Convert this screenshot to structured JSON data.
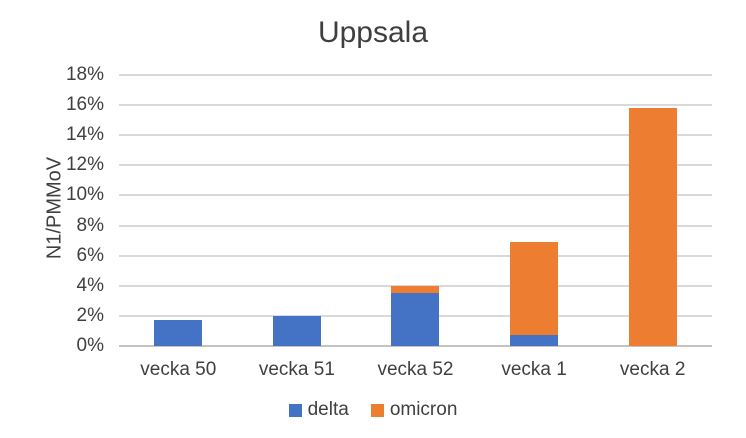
{
  "chart_data": {
    "type": "bar",
    "stacked": true,
    "title": "Uppsala",
    "ylabel": "N1/PMMoV",
    "xlabel": "",
    "categories": [
      "vecka 50",
      "vecka 51",
      "vecka 52",
      "vecka 1",
      "vecka 2"
    ],
    "series": [
      {
        "name": "delta",
        "color": "#4472C4",
        "values": [
          1.7,
          2.0,
          3.5,
          0.7,
          0
        ]
      },
      {
        "name": "omicron",
        "color": "#ED7D31",
        "values": [
          0,
          0,
          0.5,
          6.2,
          15.8
        ]
      }
    ],
    "ylim": [
      0,
      18
    ],
    "ytick_step": 2,
    "yticks": [
      "0%",
      "2%",
      "4%",
      "6%",
      "8%",
      "10%",
      "12%",
      "14%",
      "16%",
      "18%"
    ],
    "grid": true,
    "legend_position": "bottom",
    "background_color": "#ffffff",
    "gridline_color": "#d9d9d9",
    "text_color": "#404040"
  }
}
